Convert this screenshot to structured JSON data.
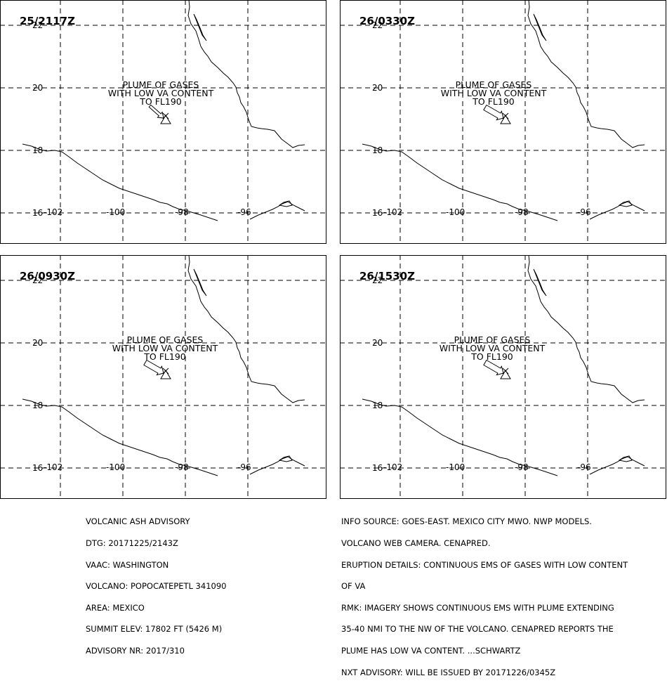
{
  "panels": [
    {
      "time": "25/2117Z",
      "annotation": [
        "PLUME OF GASES",
        "WITH LOW VA CONTENT",
        "TO FL190"
      ],
      "arrow_angle": 40,
      "arrow_style": "thin"
    },
    {
      "time": "26/0330Z",
      "annotation": [
        "PLUME OF GASES",
        "WITH LOW VA CONTENT",
        "TO FL190"
      ],
      "arrow_angle": -30,
      "arrow_style": "wide"
    },
    {
      "time": "26/0930Z",
      "annotation": [
        "PLUME OF GASES",
        "WITH LOW VA CONTENT",
        "TO FL190"
      ],
      "arrow_angle": -30,
      "arrow_style": "wide"
    },
    {
      "time": "26/1530Z",
      "annotation": [
        "PLUME OF GASES",
        "WITH LOW VA CONTENT",
        "TO FL190"
      ],
      "arrow_angle": -30,
      "arrow_style": "wide"
    }
  ],
  "map": {
    "lat_labels": [
      "22",
      "20",
      "18",
      "16"
    ],
    "lon_labels": [
      "-102",
      "-100",
      "-98",
      "-96"
    ]
  },
  "advisory_left": [
    "VOLCANIC ASH ADVISORY",
    "DTG: 20171225/2143Z",
    "VAAC: WASHINGTON",
    "VOLCANO: POPOCATEPETL 341090",
    "AREA: MEXICO",
    "SUMMIT ELEV: 17802 FT (5426 M)",
    "ADVISORY NR: 2017/310"
  ],
  "advisory_right": [
    "INFO SOURCE: GOES-EAST. MEXICO CITY MWO. NWP MODELS.",
    "VOLCANO WEB CAMERA. CENAPRED.",
    "ERUPTION DETAILS: CONTINUOUS EMS OF GASES WITH LOW CONTENT",
    "OF VA",
    "RMK: IMAGERY SHOWS CONTINUOUS EMS WITH PLUME EXTENDING",
    "35-40 NMI TO THE NW OF THE VOLCANO. CENAPRED REPORTS THE",
    "PLUME HAS LOW VA CONTENT. ...SCHWARTZ",
    "NXT ADVISORY: WILL BE ISSUED BY 20171226/0345Z"
  ]
}
